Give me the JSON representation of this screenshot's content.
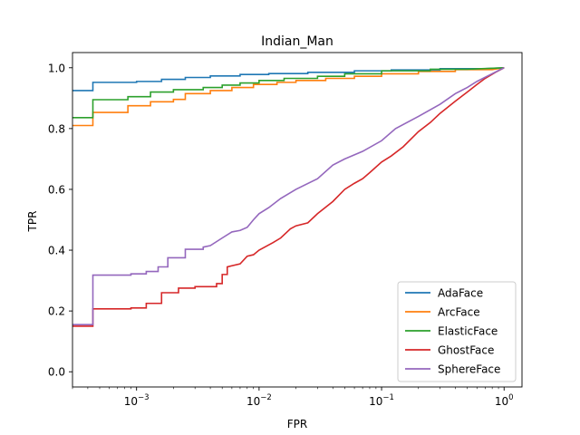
{
  "chart_data": {
    "type": "line",
    "title": "Indian_Man",
    "xlabel": "FPR",
    "ylabel": "TPR",
    "xscale": "log",
    "xlim": [
      0.0003,
      1.4
    ],
    "ylim": [
      -0.05,
      1.05
    ],
    "xticks": [
      {
        "value": 0.001,
        "base": "10",
        "exp": "−3"
      },
      {
        "value": 0.01,
        "base": "10",
        "exp": "−2"
      },
      {
        "value": 0.1,
        "base": "10",
        "exp": "−1"
      },
      {
        "value": 1,
        "base": "10",
        "exp": "0"
      }
    ],
    "yticks": [
      "0.0",
      "0.2",
      "0.4",
      "0.6",
      "0.8",
      "1.0"
    ],
    "grid": false,
    "legend_position": "lower-right",
    "series": [
      {
        "name": "AdaFace",
        "color": "#1f77b4",
        "points": [
          [
            0.0003,
            0.925
          ],
          [
            0.00044,
            0.925
          ],
          [
            0.00044,
            0.952
          ],
          [
            0.001,
            0.952
          ],
          [
            0.001,
            0.955
          ],
          [
            0.0016,
            0.955
          ],
          [
            0.0016,
            0.962
          ],
          [
            0.0025,
            0.962
          ],
          [
            0.0025,
            0.968
          ],
          [
            0.004,
            0.968
          ],
          [
            0.004,
            0.973
          ],
          [
            0.007,
            0.973
          ],
          [
            0.007,
            0.978
          ],
          [
            0.012,
            0.978
          ],
          [
            0.012,
            0.981
          ],
          [
            0.025,
            0.981
          ],
          [
            0.025,
            0.985
          ],
          [
            0.06,
            0.985
          ],
          [
            0.06,
            0.99
          ],
          [
            0.12,
            0.99
          ],
          [
            0.12,
            0.993
          ],
          [
            0.3,
            0.993
          ],
          [
            0.3,
            0.997
          ],
          [
            0.7,
            0.997
          ],
          [
            1.0,
            1.0
          ]
        ]
      },
      {
        "name": "ArcFace",
        "color": "#ff7f0e",
        "points": [
          [
            0.0003,
            0.81
          ],
          [
            0.00044,
            0.81
          ],
          [
            0.00044,
            0.853
          ],
          [
            0.00085,
            0.853
          ],
          [
            0.00085,
            0.875
          ],
          [
            0.0013,
            0.875
          ],
          [
            0.0013,
            0.888
          ],
          [
            0.002,
            0.888
          ],
          [
            0.002,
            0.896
          ],
          [
            0.0025,
            0.896
          ],
          [
            0.0025,
            0.915
          ],
          [
            0.004,
            0.915
          ],
          [
            0.004,
            0.925
          ],
          [
            0.006,
            0.925
          ],
          [
            0.006,
            0.935
          ],
          [
            0.009,
            0.935
          ],
          [
            0.009,
            0.945
          ],
          [
            0.014,
            0.945
          ],
          [
            0.014,
            0.952
          ],
          [
            0.02,
            0.952
          ],
          [
            0.02,
            0.958
          ],
          [
            0.035,
            0.958
          ],
          [
            0.035,
            0.965
          ],
          [
            0.06,
            0.965
          ],
          [
            0.06,
            0.972
          ],
          [
            0.1,
            0.972
          ],
          [
            0.1,
            0.98
          ],
          [
            0.2,
            0.98
          ],
          [
            0.2,
            0.988
          ],
          [
            0.4,
            0.988
          ],
          [
            0.4,
            0.994
          ],
          [
            0.8,
            0.994
          ],
          [
            1.0,
            1.0
          ]
        ]
      },
      {
        "name": "ElasticFace",
        "color": "#2ca02c",
        "points": [
          [
            0.0003,
            0.836
          ],
          [
            0.00044,
            0.836
          ],
          [
            0.00044,
            0.895
          ],
          [
            0.00085,
            0.895
          ],
          [
            0.00085,
            0.905
          ],
          [
            0.0013,
            0.905
          ],
          [
            0.0013,
            0.92
          ],
          [
            0.002,
            0.92
          ],
          [
            0.002,
            0.928
          ],
          [
            0.0035,
            0.928
          ],
          [
            0.0035,
            0.935
          ],
          [
            0.005,
            0.935
          ],
          [
            0.005,
            0.943
          ],
          [
            0.007,
            0.943
          ],
          [
            0.007,
            0.95
          ],
          [
            0.01,
            0.95
          ],
          [
            0.01,
            0.958
          ],
          [
            0.016,
            0.958
          ],
          [
            0.016,
            0.965
          ],
          [
            0.03,
            0.965
          ],
          [
            0.03,
            0.972
          ],
          [
            0.05,
            0.972
          ],
          [
            0.05,
            0.98
          ],
          [
            0.1,
            0.98
          ],
          [
            0.1,
            0.99
          ],
          [
            0.25,
            0.99
          ],
          [
            0.25,
            0.995
          ],
          [
            0.5,
            0.995
          ],
          [
            1.0,
            1.0
          ]
        ]
      },
      {
        "name": "GhostFace",
        "color": "#d62728",
        "points": [
          [
            0.0003,
            0.15
          ],
          [
            0.00044,
            0.15
          ],
          [
            0.00044,
            0.207
          ],
          [
            0.0009,
            0.207
          ],
          [
            0.0009,
            0.21
          ],
          [
            0.0012,
            0.21
          ],
          [
            0.0012,
            0.225
          ],
          [
            0.0016,
            0.225
          ],
          [
            0.0016,
            0.26
          ],
          [
            0.0022,
            0.26
          ],
          [
            0.0022,
            0.275
          ],
          [
            0.003,
            0.275
          ],
          [
            0.003,
            0.28
          ],
          [
            0.0045,
            0.28
          ],
          [
            0.0045,
            0.29
          ],
          [
            0.005,
            0.29
          ],
          [
            0.005,
            0.32
          ],
          [
            0.0055,
            0.32
          ],
          [
            0.0055,
            0.345
          ],
          [
            0.007,
            0.355
          ],
          [
            0.008,
            0.38
          ],
          [
            0.009,
            0.385
          ],
          [
            0.01,
            0.4
          ],
          [
            0.013,
            0.425
          ],
          [
            0.015,
            0.44
          ],
          [
            0.018,
            0.47
          ],
          [
            0.02,
            0.48
          ],
          [
            0.025,
            0.49
          ],
          [
            0.03,
            0.52
          ],
          [
            0.04,
            0.56
          ],
          [
            0.05,
            0.6
          ],
          [
            0.06,
            0.62
          ],
          [
            0.07,
            0.635
          ],
          [
            0.08,
            0.655
          ],
          [
            0.1,
            0.69
          ],
          [
            0.12,
            0.71
          ],
          [
            0.15,
            0.74
          ],
          [
            0.2,
            0.79
          ],
          [
            0.25,
            0.82
          ],
          [
            0.3,
            0.85
          ],
          [
            0.4,
            0.89
          ],
          [
            0.5,
            0.92
          ],
          [
            0.6,
            0.945
          ],
          [
            0.7,
            0.965
          ],
          [
            0.85,
            0.985
          ],
          [
            1.0,
            1.0
          ]
        ]
      },
      {
        "name": "SphereFace",
        "color": "#9467bd",
        "points": [
          [
            0.0003,
            0.155
          ],
          [
            0.00044,
            0.155
          ],
          [
            0.00044,
            0.318
          ],
          [
            0.0009,
            0.318
          ],
          [
            0.0009,
            0.322
          ],
          [
            0.0012,
            0.322
          ],
          [
            0.0012,
            0.33
          ],
          [
            0.0015,
            0.33
          ],
          [
            0.0015,
            0.345
          ],
          [
            0.0018,
            0.345
          ],
          [
            0.0018,
            0.375
          ],
          [
            0.0025,
            0.375
          ],
          [
            0.0025,
            0.403
          ],
          [
            0.0035,
            0.403
          ],
          [
            0.0035,
            0.41
          ],
          [
            0.004,
            0.415
          ],
          [
            0.005,
            0.44
          ],
          [
            0.006,
            0.46
          ],
          [
            0.007,
            0.465
          ],
          [
            0.008,
            0.475
          ],
          [
            0.009,
            0.5
          ],
          [
            0.01,
            0.52
          ],
          [
            0.012,
            0.54
          ],
          [
            0.015,
            0.57
          ],
          [
            0.02,
            0.6
          ],
          [
            0.03,
            0.635
          ],
          [
            0.04,
            0.68
          ],
          [
            0.05,
            0.7
          ],
          [
            0.07,
            0.725
          ],
          [
            0.1,
            0.76
          ],
          [
            0.13,
            0.8
          ],
          [
            0.2,
            0.84
          ],
          [
            0.3,
            0.88
          ],
          [
            0.4,
            0.915
          ],
          [
            0.5,
            0.935
          ],
          [
            0.6,
            0.955
          ],
          [
            0.75,
            0.975
          ],
          [
            1.0,
            1.0
          ]
        ]
      }
    ]
  }
}
